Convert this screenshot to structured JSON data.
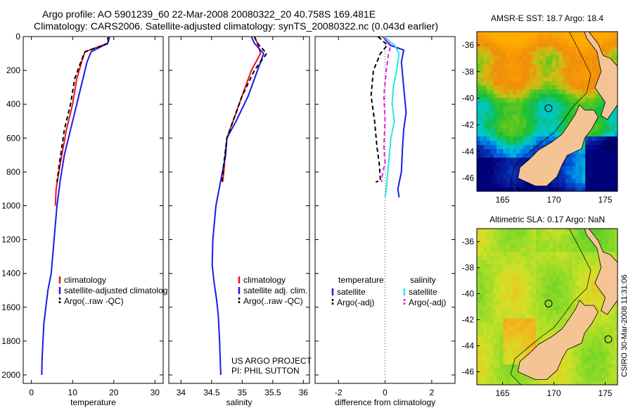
{
  "header": {
    "line1": "Argo profile: AO 5901239_60 22-Mar-2008 20080322_20 40.758S 169.481E",
    "line2": "Climatology: CARS2006. Satellite-adjusted climatology: synTS_20080322.nc (0.043d earlier)"
  },
  "colors": {
    "climatology": "#e8141e",
    "satellite": "#1a1ae6",
    "argo": "#000000",
    "satellite_salinity": "#25e6e6",
    "argo_salinity": "#e61ee6",
    "land": "#f5c495"
  },
  "credits": {
    "project": "US ARGO PROJECT",
    "pi": "PI: PHIL SUTTON",
    "stamp": "CSIRO 30-Mar-2008 11:31:06"
  },
  "chart_data": [
    {
      "type": "line",
      "panel": "temperature",
      "xlabel": "temperature",
      "xlim": [
        -2,
        32
      ],
      "ylim": [
        2050,
        0
      ],
      "xticks": [
        0,
        10,
        20,
        30
      ],
      "yticks": [
        0,
        200,
        400,
        600,
        800,
        1000,
        1200,
        1400,
        1600,
        1800,
        2000
      ],
      "legend": {
        "placement": "bottom-right",
        "entries": [
          "climatology",
          "satellite-adjusted climatolog",
          "Argo(..raw -QC)"
        ]
      },
      "series": [
        {
          "name": "climatology",
          "style": "solid",
          "color_key": "climatology",
          "x": [
            19,
            18.5,
            13,
            12.2,
            11,
            10,
            8.5,
            7,
            6,
            5.8
          ],
          "y": [
            0,
            40,
            90,
            150,
            250,
            400,
            550,
            750,
            900,
            1000
          ]
        },
        {
          "name": "satellite-adjusted climatolog",
          "style": "solid",
          "color_key": "satellite",
          "x": [
            19,
            18.5,
            14.5,
            13.5,
            12.5,
            11,
            9.5,
            8,
            7,
            6.2,
            5.5,
            4.8,
            4,
            3.5,
            3,
            2.8,
            2.6,
            2.5
          ],
          "y": [
            0,
            40,
            90,
            150,
            250,
            400,
            550,
            700,
            850,
            1000,
            1200,
            1400,
            1500,
            1600,
            1700,
            1800,
            1900,
            2000
          ]
        },
        {
          "name": "Argo(..raw -QC)",
          "style": "dashed",
          "color_key": "argo",
          "x": [
            18.5,
            18.8,
            13,
            12,
            10.5,
            9.5,
            8,
            6.8,
            6.2
          ],
          "y": [
            5,
            40,
            90,
            150,
            250,
            400,
            550,
            750,
            860
          ]
        }
      ]
    },
    {
      "type": "line",
      "panel": "salinity",
      "xlabel": "salinity",
      "xlim": [
        33.8,
        36.1
      ],
      "ylim": [
        2050,
        0
      ],
      "xticks": [
        34,
        34.5,
        35,
        35.5,
        36
      ],
      "xticklabels": [
        "34",
        "34.5",
        "35",
        "35.5",
        "36"
      ],
      "legend": {
        "placement": "bottom-right",
        "entries": [
          "climatology",
          "satellite adj. clim.",
          "Argo(..raw -QC)"
        ]
      },
      "series": [
        {
          "name": "climatology",
          "style": "solid",
          "color_key": "climatology",
          "x": [
            35.2,
            35.25,
            35.3,
            35.15,
            35.0,
            34.85,
            34.75,
            34.72,
            34.7,
            34.68
          ],
          "y": [
            0,
            40,
            100,
            200,
            350,
            500,
            600,
            700,
            800,
            860
          ]
        },
        {
          "name": "satellite adj. clim.",
          "style": "solid",
          "color_key": "satellite",
          "x": [
            35.15,
            35.2,
            35.35,
            35.25,
            35.1,
            34.9,
            34.75,
            34.73,
            34.65,
            34.57,
            34.52,
            34.51,
            34.54,
            34.58,
            34.61,
            34.63,
            34.64,
            34.65
          ],
          "y": [
            0,
            40,
            100,
            200,
            350,
            500,
            600,
            700,
            850,
            1000,
            1200,
            1350,
            1450,
            1550,
            1650,
            1800,
            1900,
            2000
          ]
        },
        {
          "name": "Argo(..raw -QC)",
          "style": "dashed",
          "color_key": "argo",
          "x": [
            35.2,
            35.25,
            35.4,
            35.2,
            35.0,
            34.85,
            34.75,
            34.7,
            34.67
          ],
          "y": [
            0,
            40,
            100,
            200,
            350,
            500,
            600,
            750,
            860
          ]
        }
      ]
    },
    {
      "type": "line",
      "panel": "difference",
      "xlabel": "difference from climatology",
      "xlim": [
        -3,
        3
      ],
      "ylim": [
        2050,
        0
      ],
      "xticks": [
        -2,
        0,
        2
      ],
      "xticklabels": [
        "-2",
        "0",
        "2"
      ],
      "zero_line": "dotted",
      "legend": {
        "placement": "bottom",
        "groups": [
          "temperature",
          "salinity"
        ],
        "entries": [
          "satellite",
          "Argo(-adj)",
          "satellite",
          "Argo(-adj)"
        ]
      },
      "series": [
        {
          "name": "satellite",
          "group": "temperature",
          "style": "solid",
          "color_key": "satellite",
          "x": [
            -0.1,
            0.2,
            0.8,
            0.7,
            0.8,
            0.9,
            0.8,
            0.75,
            0.7,
            0.55,
            0.6
          ],
          "y": [
            0,
            50,
            80,
            150,
            300,
            450,
            550,
            650,
            800,
            900,
            950
          ]
        },
        {
          "name": "Argo(-adj)",
          "group": "temperature",
          "style": "dashed",
          "color_key": "argo",
          "x": [
            -0.3,
            0.1,
            -0.2,
            -0.5,
            -0.6,
            -0.45,
            -0.35,
            -0.25,
            -0.2,
            -0.4
          ],
          "y": [
            0,
            50,
            100,
            200,
            350,
            500,
            650,
            750,
            850,
            860
          ]
        },
        {
          "name": "satellite",
          "group": "salinity",
          "style": "solid",
          "color_key": "satellite_salinity",
          "x": [
            -0.05,
            0.4,
            0.6,
            0.5,
            0.35,
            0.3,
            0.4,
            0.25,
            0.15,
            0.05,
            0.0
          ],
          "y": [
            0,
            50,
            100,
            200,
            300,
            400,
            500,
            600,
            750,
            900,
            950
          ]
        },
        {
          "name": "Argo(-adj)",
          "group": "salinity",
          "style": "dashed",
          "color_key": "argo_salinity",
          "x": [
            -0.1,
            0.25,
            0.15,
            0.05,
            -0.05,
            0.0,
            -0.05,
            0.0,
            -0.1,
            -0.15
          ],
          "y": [
            0,
            50,
            100,
            200,
            350,
            500,
            650,
            750,
            800,
            860
          ]
        }
      ]
    },
    {
      "type": "heatmap",
      "panel": "map-sst",
      "title": "AMSR-E SST: 18.7 Argo: 18.4",
      "xlim": [
        162.5,
        176.2
      ],
      "ylim": [
        -47,
        -35
      ],
      "xticks": [
        165,
        170,
        175
      ],
      "yticks": [
        -36,
        -38,
        -40,
        -42,
        -44,
        -46
      ],
      "values": {
        "amsr_sst": 18.7,
        "argo": 18.4
      },
      "argo_position": {
        "lon": 169.481,
        "lat": -40.758
      }
    },
    {
      "type": "heatmap",
      "panel": "map-sla",
      "title": "Altimetric SLA: 0.17 Argo: NaN",
      "xlim": [
        162.5,
        176.2
      ],
      "ylim": [
        -47,
        -35
      ],
      "xticks": [
        165,
        170,
        175
      ],
      "yticks": [
        -36,
        -38,
        -40,
        -42,
        -44,
        -46
      ],
      "values": {
        "sla": 0.17,
        "argo": "NaN"
      },
      "argo_position": {
        "lon": 169.481,
        "lat": -40.758
      }
    }
  ]
}
